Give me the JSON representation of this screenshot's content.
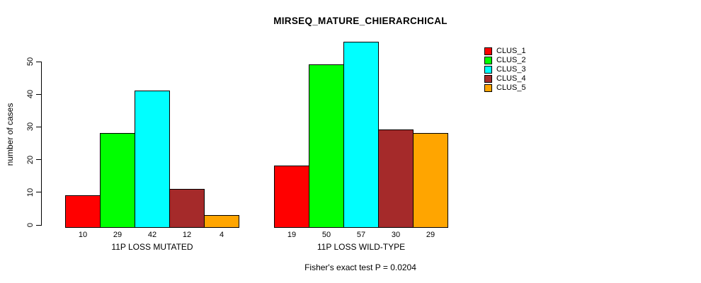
{
  "chart_data": {
    "type": "bar",
    "title": "MIRSEQ_MATURE_CHIERARCHICAL",
    "subtitle": "Fisher's exact test P = 0.0204",
    "xlabel": "",
    "ylabel": "number of cases",
    "ylim": [
      0,
      57
    ],
    "yticks": [
      0,
      10,
      20,
      30,
      40,
      50
    ],
    "grid": false,
    "legend_position": "top-right",
    "categories": [
      "11P LOSS MUTATED",
      "11P LOSS WILD-TYPE"
    ],
    "series": [
      {
        "name": "CLUS_1",
        "color": "#FF0000",
        "values": [
          10,
          19
        ]
      },
      {
        "name": "CLUS_2",
        "color": "#00FF00",
        "values": [
          29,
          50
        ]
      },
      {
        "name": "CLUS_3",
        "color": "#00FFFF",
        "values": [
          42,
          57
        ]
      },
      {
        "name": "CLUS_4",
        "color": "#A52A2A",
        "values": [
          12,
          30
        ]
      },
      {
        "name": "CLUS_5",
        "color": "#FFA500",
        "values": [
          4,
          29
        ]
      }
    ],
    "groups": [
      {
        "label": "11P LOSS MUTATED",
        "values": [
          10,
          29,
          42,
          12,
          4
        ]
      },
      {
        "label": "11P LOSS WILD-TYPE",
        "values": [
          19,
          50,
          57,
          30,
          29
        ]
      }
    ],
    "bar_value_labels_shown": true
  },
  "colors": {
    "background": "#FFFFFF",
    "axis": "#000000",
    "text": "#000000"
  }
}
